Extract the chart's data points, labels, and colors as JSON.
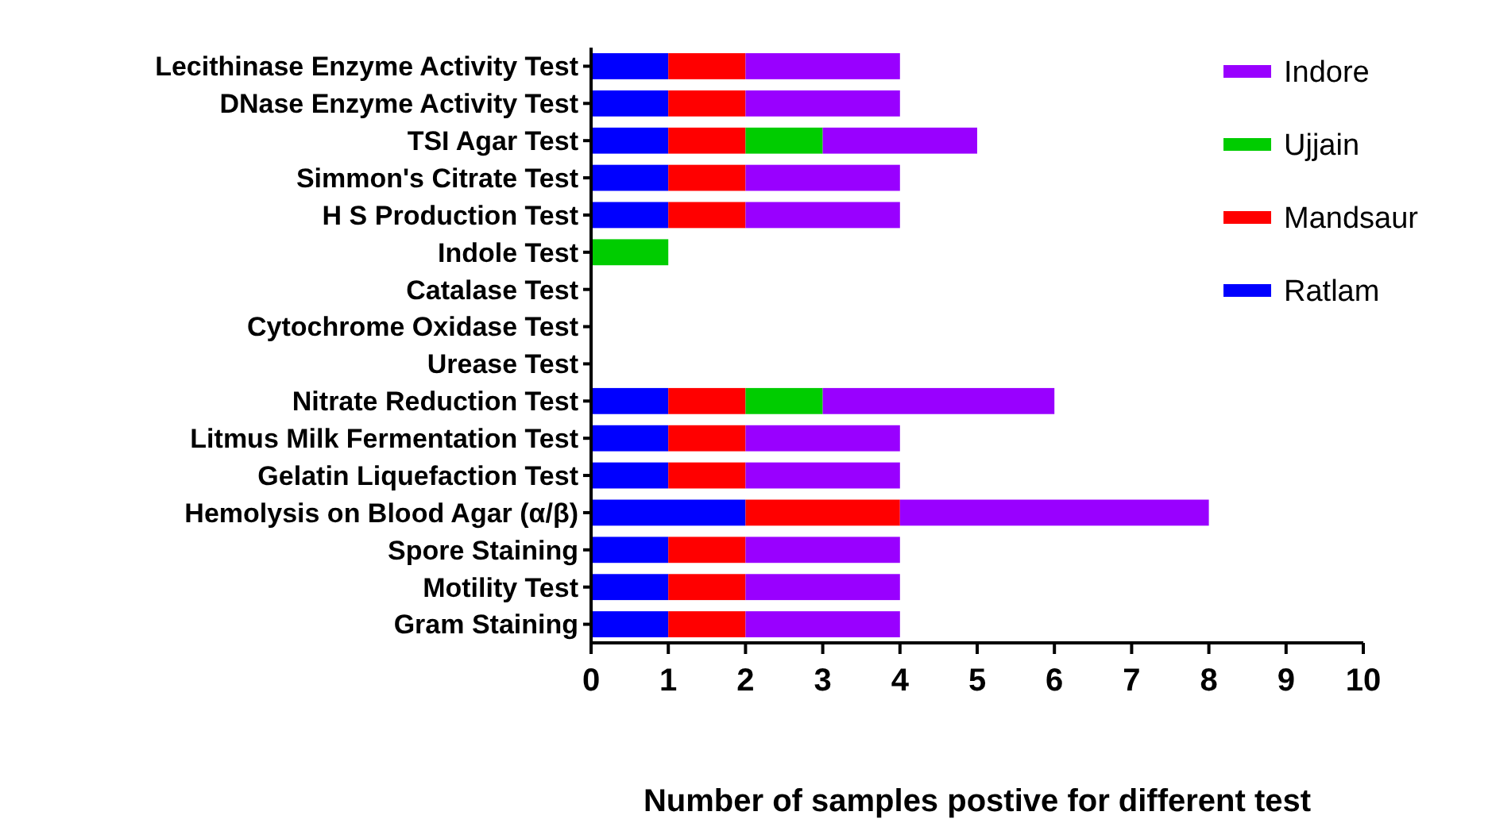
{
  "chart_data": {
    "type": "bar",
    "orientation": "horizontal",
    "stacked": true,
    "xlabel": "Number of samples postive for different test",
    "categories": [
      "Lecithinase Enzyme Activity Test",
      "DNase Enzyme Activity Test",
      "TSI Agar Test",
      "Simmon's Citrate Test",
      "H S Production Test",
      "Indole Test",
      "Catalase Test",
      "Cytochrome Oxidase Test",
      "Urease Test",
      "Nitrate Reduction Test",
      "Litmus Milk Fermentation Test",
      "Gelatin Liquefaction Test",
      "Hemolysis on Blood Agar (α/β)",
      "Spore Staining",
      "Motility Test",
      "Gram Staining"
    ],
    "series": [
      {
        "name": "Ratlam",
        "color": "#0000ff",
        "values": [
          1,
          1,
          1,
          1,
          1,
          0,
          0,
          0,
          0,
          1,
          1,
          1,
          2,
          1,
          1,
          1
        ]
      },
      {
        "name": "Mandsaur",
        "color": "#ff0000",
        "values": [
          1,
          1,
          1,
          1,
          1,
          0,
          0,
          0,
          0,
          1,
          1,
          1,
          2,
          1,
          1,
          1
        ]
      },
      {
        "name": "Ujjain",
        "color": "#00cc00",
        "values": [
          0,
          0,
          1,
          0,
          0,
          1,
          0,
          0,
          0,
          1,
          0,
          0,
          0,
          0,
          0,
          0
        ]
      },
      {
        "name": "Indore",
        "color": "#9900ff",
        "values": [
          2,
          2,
          2,
          2,
          2,
          0,
          0,
          0,
          0,
          3,
          2,
          2,
          4,
          2,
          2,
          2
        ]
      }
    ],
    "xlim": [
      0,
      10
    ],
    "xticks": [
      0,
      1,
      2,
      3,
      4,
      5,
      6,
      7,
      8,
      9,
      10
    ],
    "legend": "right"
  }
}
